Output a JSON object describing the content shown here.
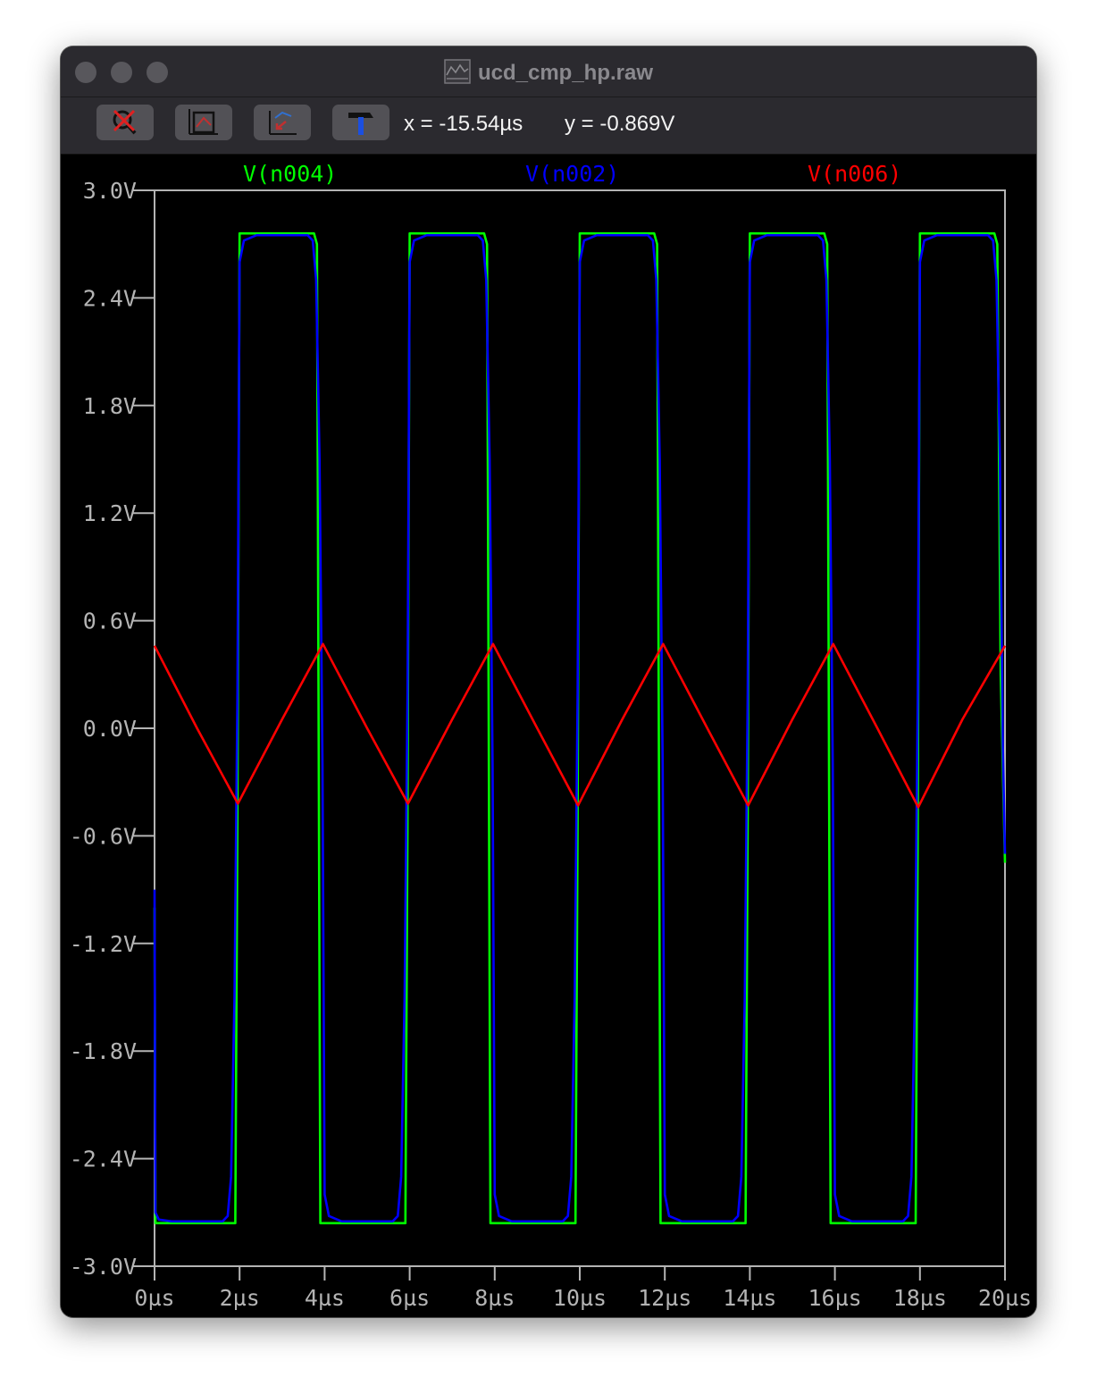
{
  "window": {
    "title": "ucd_cmp_hp.raw",
    "title_icon": "waveform-doc-icon"
  },
  "toolbar": {
    "buttons": [
      {
        "name": "autorange-disable-icon"
      },
      {
        "name": "zoom-full-extents-icon"
      },
      {
        "name": "zoom-back-icon"
      },
      {
        "name": "hammer-icon"
      }
    ],
    "cursor_x": "x = -15.54µs",
    "cursor_y": "y = -0.869V"
  },
  "colors": {
    "background": "#000000",
    "grid": "#b4b4b4",
    "axis_text": "#b4b4b4"
  },
  "chart_data": {
    "type": "line",
    "x_unit": "µs",
    "y_unit": "V",
    "xlim": [
      0,
      20
    ],
    "ylim": [
      -3.0,
      3.0
    ],
    "x_ticks": [
      0,
      2,
      4,
      6,
      8,
      10,
      12,
      14,
      16,
      18,
      20
    ],
    "y_ticks": [
      3.0,
      2.4,
      1.8,
      1.2,
      0.6,
      0.0,
      -0.6,
      -1.2,
      -1.8,
      -2.4,
      -3.0
    ],
    "x_tick_labels": [
      "0µs",
      "2µs",
      "4µs",
      "6µs",
      "8µs",
      "10µs",
      "12µs",
      "14µs",
      "16µs",
      "18µs",
      "20µs"
    ],
    "y_tick_labels": [
      "3.0V",
      "2.4V",
      "1.8V",
      "1.2V",
      "0.6V",
      "0.0V",
      "-0.6V",
      "-1.2V",
      "-1.8V",
      "-2.4V",
      "-3.0V"
    ],
    "grid": false,
    "legend_position": "top",
    "series": [
      {
        "name": "V(n004)",
        "color": "#00ff00",
        "x": [
          0,
          0.02,
          1.9,
          1.95,
          2.0,
          3.75,
          3.82,
          3.9,
          5.9,
          5.95,
          6.0,
          7.75,
          7.82,
          7.9,
          9.9,
          9.95,
          10.0,
          11.75,
          11.82,
          11.9,
          13.9,
          13.95,
          14.0,
          15.75,
          15.82,
          15.9,
          17.9,
          17.95,
          18.0,
          19.75,
          19.82,
          19.9,
          20.0
        ],
        "y": [
          -1.0,
          -2.76,
          -2.76,
          -0.5,
          2.76,
          2.76,
          2.7,
          -2.76,
          -2.76,
          -0.5,
          2.76,
          2.76,
          2.7,
          -2.76,
          -2.76,
          -0.5,
          2.76,
          2.76,
          2.7,
          -2.76,
          -2.76,
          -0.5,
          2.76,
          2.76,
          2.7,
          -2.76,
          -2.76,
          -0.5,
          2.76,
          2.76,
          2.7,
          0.3,
          -0.75
        ]
      },
      {
        "name": "V(n002)",
        "color": "#0000ff",
        "x": [
          0,
          0.02,
          0.1,
          0.4,
          1.6,
          1.72,
          1.8,
          1.88,
          1.95,
          2.0,
          2.1,
          2.4,
          3.6,
          3.72,
          3.8,
          3.88,
          3.95,
          4.0,
          4.1,
          4.4,
          5.6,
          5.72,
          5.8,
          5.88,
          5.95,
          6.0,
          6.1,
          6.4,
          7.6,
          7.72,
          7.8,
          7.88,
          7.95,
          8.0,
          8.1,
          8.4,
          9.6,
          9.72,
          9.8,
          9.88,
          9.95,
          10.0,
          10.1,
          10.4,
          11.6,
          11.72,
          11.8,
          11.88,
          11.95,
          12.0,
          12.1,
          12.4,
          13.6,
          13.72,
          13.8,
          13.88,
          13.95,
          14.0,
          14.1,
          14.4,
          15.6,
          15.72,
          15.8,
          15.88,
          15.95,
          16.0,
          16.1,
          16.4,
          17.6,
          17.72,
          17.8,
          17.88,
          17.95,
          18.0,
          18.1,
          18.4,
          19.6,
          19.72,
          19.8,
          19.88,
          19.95,
          20.0
        ],
        "y": [
          -0.9,
          -2.7,
          -2.74,
          -2.75,
          -2.75,
          -2.72,
          -2.5,
          -1.5,
          0.2,
          2.6,
          2.72,
          2.75,
          2.75,
          2.72,
          2.5,
          1.5,
          -0.2,
          -2.6,
          -2.72,
          -2.75,
          -2.75,
          -2.72,
          -2.5,
          -1.5,
          0.2,
          2.6,
          2.72,
          2.75,
          2.75,
          2.72,
          2.5,
          1.5,
          -0.2,
          -2.6,
          -2.72,
          -2.75,
          -2.75,
          -2.72,
          -2.5,
          -1.5,
          0.2,
          2.6,
          2.72,
          2.75,
          2.75,
          2.72,
          2.5,
          1.5,
          -0.2,
          -2.6,
          -2.72,
          -2.75,
          -2.75,
          -2.72,
          -2.5,
          -1.5,
          0.2,
          2.6,
          2.72,
          2.75,
          2.75,
          2.72,
          2.5,
          1.5,
          -0.2,
          -2.6,
          -2.72,
          -2.75,
          -2.75,
          -2.72,
          -2.5,
          -1.5,
          0.2,
          2.6,
          2.72,
          2.75,
          2.75,
          2.72,
          2.5,
          1.5,
          -0.1,
          -0.7
        ]
      },
      {
        "name": "V(n006)",
        "color": "#ff0000",
        "x": [
          0,
          1.0,
          1.96,
          3.0,
          3.96,
          5.0,
          5.96,
          7.0,
          7.96,
          9.0,
          9.96,
          11.0,
          11.96,
          13.0,
          13.96,
          15.0,
          15.96,
          17.0,
          17.96,
          19.0,
          20.0
        ],
        "y": [
          0.46,
          0.0,
          -0.42,
          0.05,
          0.47,
          0.0,
          -0.42,
          0.05,
          0.47,
          0.0,
          -0.43,
          0.05,
          0.47,
          0.0,
          -0.43,
          0.05,
          0.47,
          0.0,
          -0.44,
          0.05,
          0.46
        ]
      }
    ]
  }
}
